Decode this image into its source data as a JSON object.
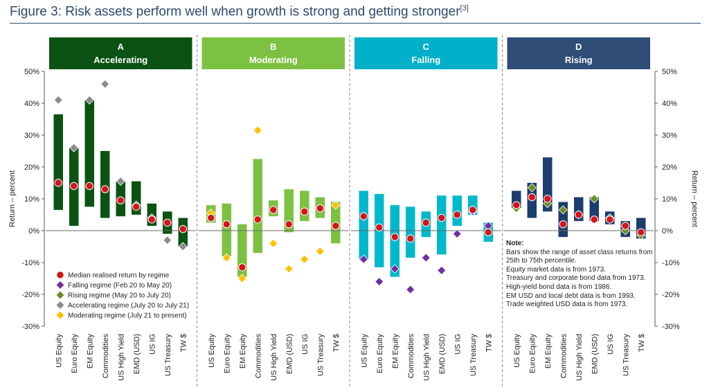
{
  "title": {
    "main": "Figure 3: Risk assets perform well when growth is strong and getting stronger",
    "ref": "[3]"
  },
  "chart_data": {
    "type": "bar",
    "ylabel_left": "Return – percent",
    "ylabel_right": "Return – percent",
    "ylim": [
      -30,
      50
    ],
    "yticks": [
      -30,
      -20,
      -10,
      0,
      10,
      20,
      30,
      40,
      50
    ],
    "ytick_labels": [
      "-30%",
      "-20%",
      "-10%",
      "0%",
      "10%",
      "20%",
      "30%",
      "40%",
      "50%"
    ],
    "categories": [
      "US Equity",
      "Euro Equity",
      "EM Equity",
      "Commodities",
      "US High Yield",
      "EMD (USD)",
      "US IG",
      "US Treasury",
      "TW $"
    ],
    "colors": {
      "median": "#d7141a",
      "falling_regime": "#7030a0",
      "rising_regime": "#6b8e23",
      "accelerating_regime": "#8c8c8c",
      "moderating_regime": "#ffc000"
    },
    "panels": [
      {
        "letter": "A",
        "name": "Accelerating",
        "header_color": "#0b5313",
        "bar_color": "#0b5313",
        "ranges": [
          [
            6.5,
            36.5
          ],
          [
            1.5,
            26
          ],
          [
            7.5,
            41
          ],
          [
            4,
            25
          ],
          [
            4.5,
            15.5
          ],
          [
            5,
            15.5
          ],
          [
            1.5,
            8.5
          ],
          [
            -1,
            6
          ],
          [
            -5,
            4
          ]
        ],
        "medians": [
          15,
          14,
          14,
          13,
          9.5,
          7.5,
          3.5,
          2.5,
          0.5
        ],
        "regime_marker": "accelerating_regime",
        "regime_values": [
          41,
          26,
          41,
          46,
          15.5,
          8,
          4,
          -3,
          -5
        ]
      },
      {
        "letter": "B",
        "name": "Moderating",
        "header_color": "#7dc142",
        "bar_color": "#7dc142",
        "ranges": [
          [
            2.5,
            8
          ],
          [
            -8,
            8.5
          ],
          [
            -14.5,
            2
          ],
          [
            -7,
            22.5
          ],
          [
            4.5,
            9.5
          ],
          [
            -0.5,
            13
          ],
          [
            3,
            12.5
          ],
          [
            4,
            10.5
          ],
          [
            -4,
            9
          ]
        ],
        "medians": [
          4,
          2,
          -11.5,
          3.5,
          6.5,
          2,
          6,
          7,
          1.5
        ],
        "regime_marker": "moderating_regime",
        "regime_values": [
          5.5,
          -8.5,
          -15,
          31.5,
          -4,
          -12,
          -9,
          -6.5,
          8
        ]
      },
      {
        "letter": "C",
        "name": "Falling",
        "header_color": "#00b0c8",
        "bar_color": "#00b8cc",
        "ranges": [
          [
            -9,
            12.5
          ],
          [
            -11.5,
            11.5
          ],
          [
            -14.5,
            8
          ],
          [
            -8.5,
            7.5
          ],
          [
            -2,
            6
          ],
          [
            -7.5,
            11
          ],
          [
            1.5,
            11
          ],
          [
            5,
            11
          ],
          [
            -3.5,
            2.5
          ]
        ],
        "medians": [
          4.5,
          1,
          -2,
          -2.5,
          2.5,
          4,
          5,
          6.5,
          -0.5
        ],
        "regime_marker": "falling_regime",
        "regime_values": [
          -9,
          -16,
          -12,
          -18.5,
          -8.5,
          -12.5,
          -1,
          6,
          1.5
        ]
      },
      {
        "letter": "D",
        "name": "Rising",
        "header_color": "#2f4d76",
        "bar_color": "#1c3e6e",
        "ranges": [
          [
            7,
            12.5
          ],
          [
            4,
            15
          ],
          [
            6,
            23
          ],
          [
            -2,
            9
          ],
          [
            3,
            10.5
          ],
          [
            3,
            10.5
          ],
          [
            2,
            6
          ],
          [
            -2,
            3
          ],
          [
            -2.5,
            4
          ]
        ],
        "medians": [
          8,
          10.5,
          10,
          2,
          5,
          3.5,
          3.5,
          1.5,
          -0.5
        ],
        "regime_marker": "rising_regime",
        "regime_values": [
          7,
          13.5,
          8.5,
          6.5,
          5,
          10,
          4,
          0,
          -1.5
        ]
      }
    ],
    "legend": {
      "placement": "bottom-left",
      "entries": [
        {
          "key": "median",
          "label": "Median realised return by regime"
        },
        {
          "key": "falling_regime",
          "label": "Falling regime (Feb 20 to May 20)"
        },
        {
          "key": "rising_regime",
          "label": "Rising regime (May 20 to July 20)"
        },
        {
          "key": "accelerating_regime",
          "label": "Accelerating regime (July 20 to July 21)"
        },
        {
          "key": "moderating_regime",
          "label": "Moderating regime (July 21 to present)"
        }
      ]
    }
  },
  "note": {
    "title": "Note:",
    "lines": [
      "Bars show the range of asset class returns from 25th to 75th percentile.",
      "Equity market data is from 1973.",
      "Treasury and corporate bond data from 1973.",
      "High-yield bond data is from 1986.",
      "EM USD and local debt data is from 1993.",
      "Trade weighted USD data is from 1973."
    ]
  }
}
